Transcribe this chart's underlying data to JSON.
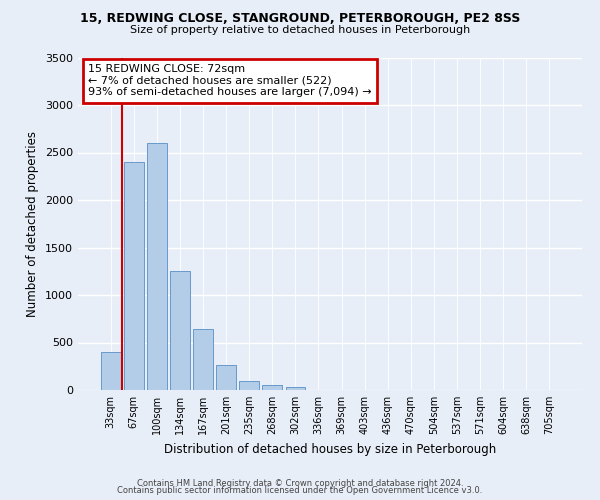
{
  "title": "15, REDWING CLOSE, STANGROUND, PETERBOROUGH, PE2 8SS",
  "subtitle": "Size of property relative to detached houses in Peterborough",
  "xlabel": "Distribution of detached houses by size in Peterborough",
  "ylabel": "Number of detached properties",
  "bar_labels": [
    "33sqm",
    "67sqm",
    "100sqm",
    "134sqm",
    "167sqm",
    "201sqm",
    "235sqm",
    "268sqm",
    "302sqm",
    "336sqm",
    "369sqm",
    "403sqm",
    "436sqm",
    "470sqm",
    "504sqm",
    "537sqm",
    "571sqm",
    "604sqm",
    "638sqm",
    "705sqm"
  ],
  "bar_values": [
    400,
    2400,
    2600,
    1250,
    640,
    260,
    100,
    50,
    30,
    0,
    0,
    0,
    0,
    0,
    0,
    0,
    0,
    0,
    0,
    0
  ],
  "bar_color": "#b3cce8",
  "bar_edge_color": "#6699cc",
  "annotation_title": "15 REDWING CLOSE: 72sqm",
  "annotation_line1": "← 7% of detached houses are smaller (522)",
  "annotation_line2": "93% of semi-detached houses are larger (7,094) →",
  "annotation_box_color": "#ffffff",
  "annotation_box_edge": "#cc0000",
  "vline_color": "#cc0000",
  "ylim": [
    0,
    3500
  ],
  "yticks": [
    0,
    500,
    1000,
    1500,
    2000,
    2500,
    3000,
    3500
  ],
  "footer_line1": "Contains HM Land Registry data © Crown copyright and database right 2024.",
  "footer_line2": "Contains public sector information licensed under the Open Government Licence v3.0.",
  "bg_color": "#e8eef7",
  "plot_bg_color": "#e8eef7"
}
